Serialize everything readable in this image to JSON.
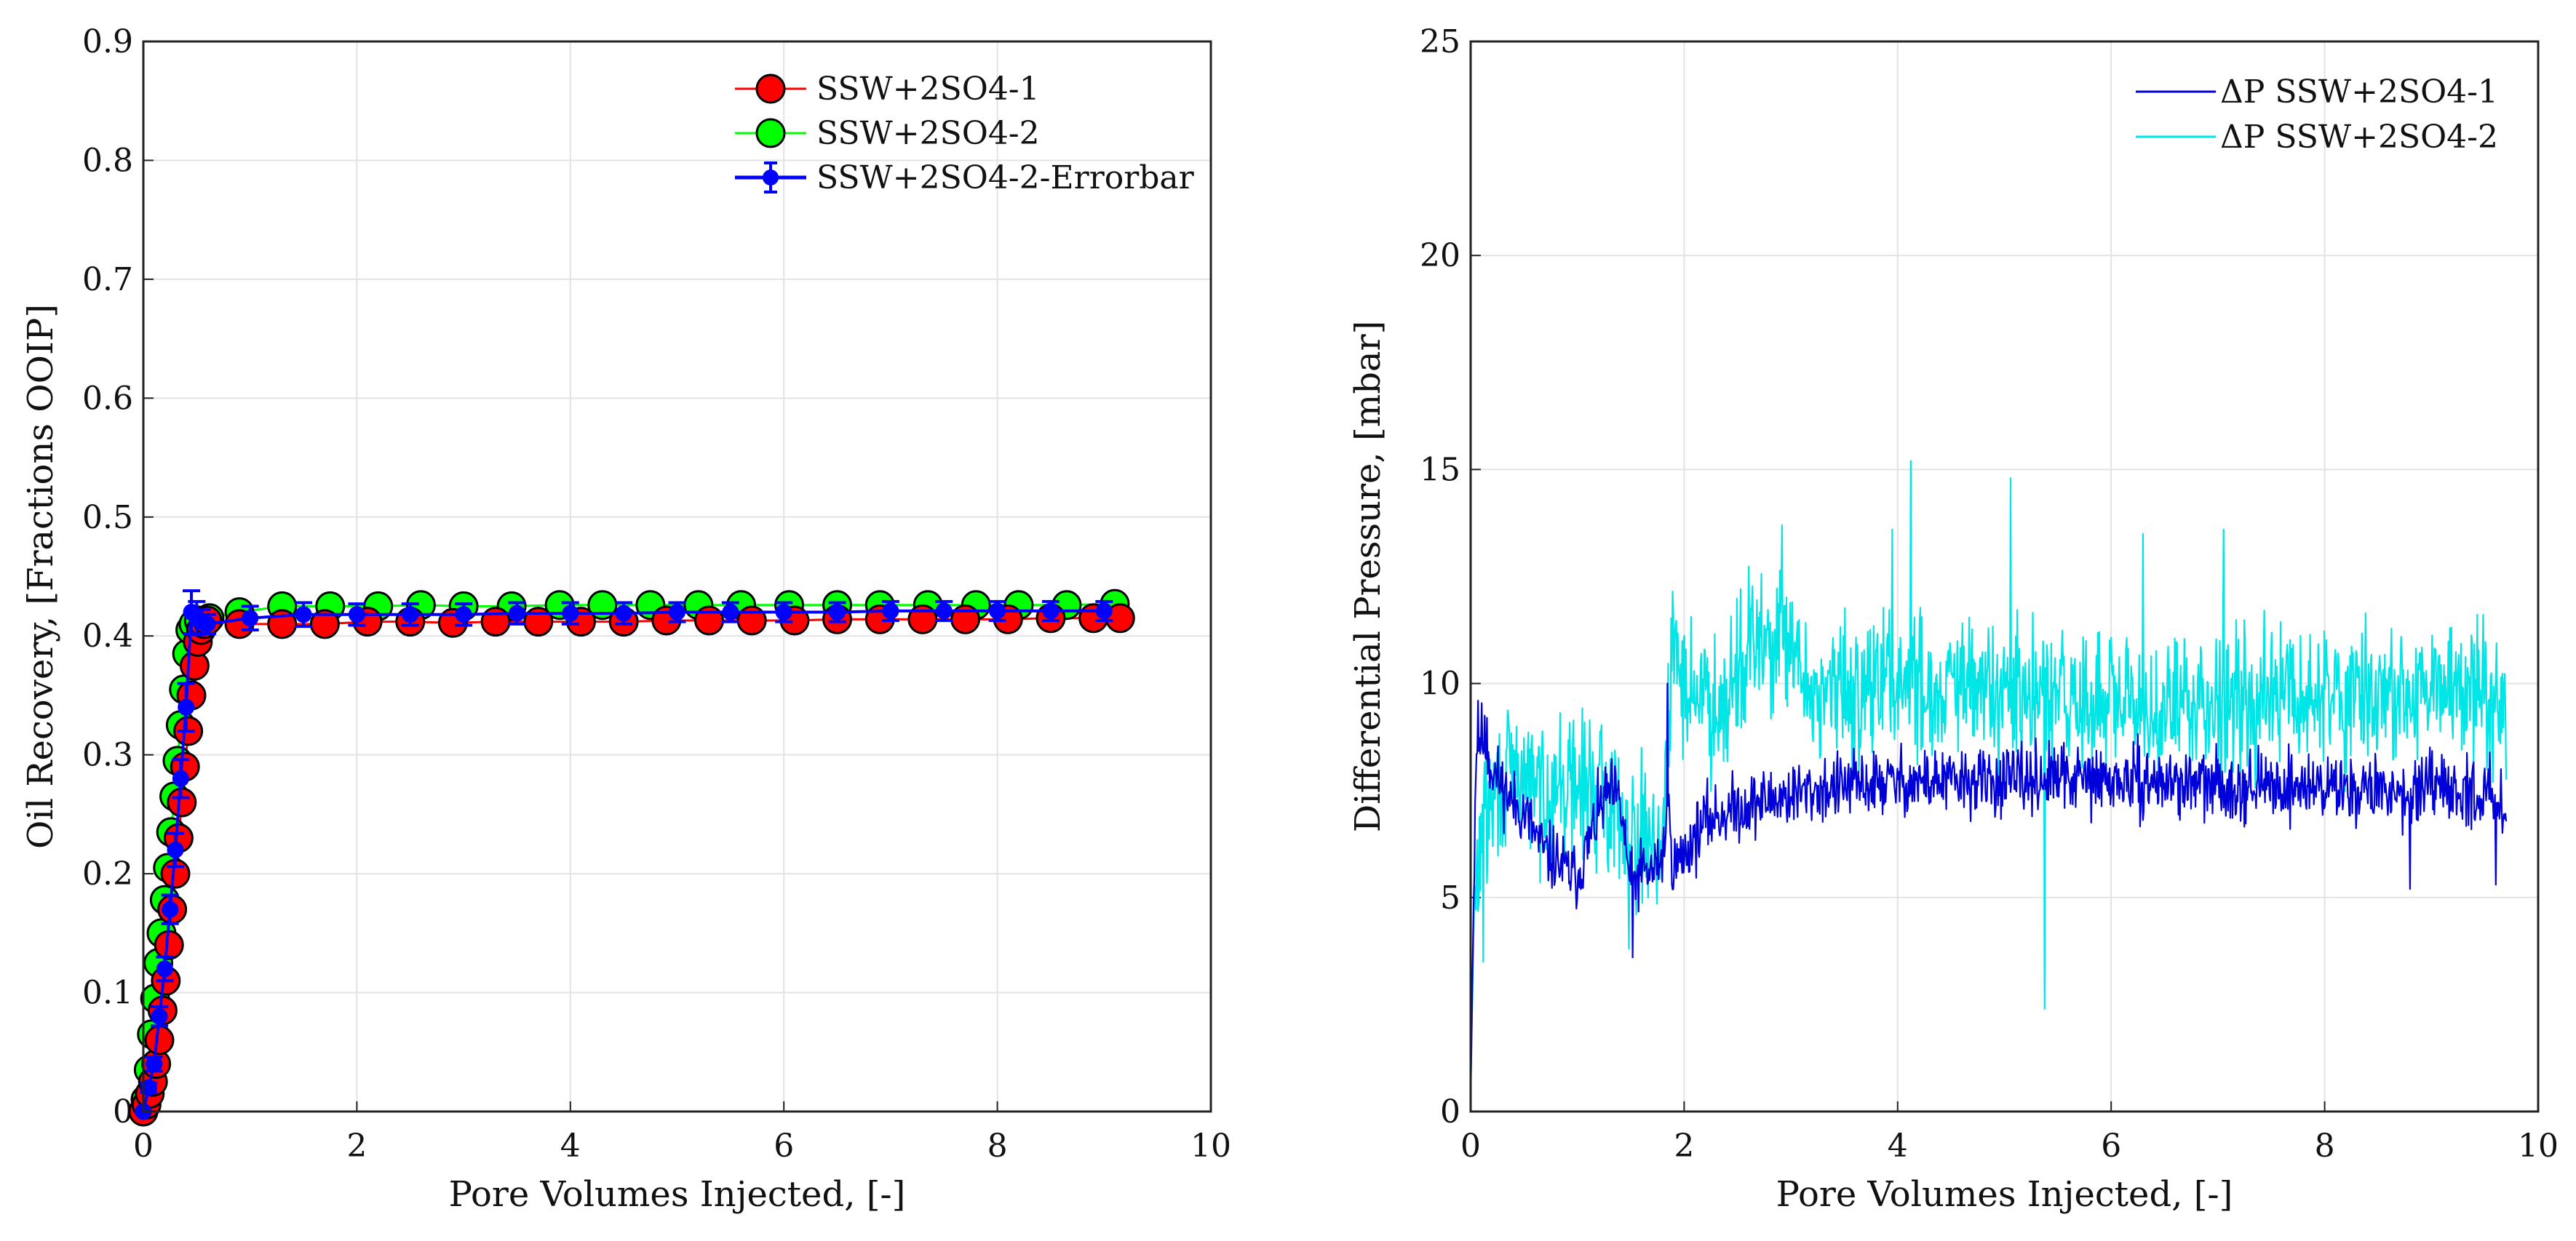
{
  "chart_data": [
    {
      "type": "scatter",
      "title": "",
      "xlabel": "Pore Volumes Injected, [-]",
      "ylabel": "Oil Recovery, [Fractions OOIP]",
      "xlim": [
        0,
        10
      ],
      "ylim": [
        0,
        0.9
      ],
      "xticks": [
        0,
        2,
        4,
        6,
        8,
        10
      ],
      "yticks": [
        0,
        0.1,
        0.2,
        0.3,
        0.4,
        0.5,
        0.6,
        0.7,
        0.8,
        0.9
      ],
      "xtick_labels": [
        "0",
        "2",
        "4",
        "6",
        "8",
        "10"
      ],
      "ytick_labels": [
        "0",
        "0.1",
        "0.2",
        "0.3",
        "0.4",
        "0.5",
        "0.6",
        "0.7",
        "0.8",
        "0.9"
      ],
      "grid": true,
      "legend_position": "top-right",
      "series": [
        {
          "name": "SSW+2SO4-1",
          "color": "#ff0000",
          "marker": "circle",
          "x": [
            0.0,
            0.03,
            0.06,
            0.09,
            0.12,
            0.15,
            0.18,
            0.21,
            0.24,
            0.27,
            0.3,
            0.33,
            0.36,
            0.39,
            0.42,
            0.45,
            0.48,
            0.51,
            0.54,
            0.57,
            0.6,
            0.9,
            1.3,
            1.7,
            2.1,
            2.5,
            2.9,
            3.3,
            3.7,
            4.1,
            4.5,
            4.9,
            5.3,
            5.7,
            6.1,
            6.5,
            6.9,
            7.3,
            7.7,
            8.1,
            8.5,
            8.9,
            9.15
          ],
          "y": [
            0.0,
            0.006,
            0.015,
            0.025,
            0.04,
            0.06,
            0.085,
            0.11,
            0.14,
            0.17,
            0.2,
            0.23,
            0.26,
            0.29,
            0.32,
            0.35,
            0.375,
            0.395,
            0.405,
            0.41,
            0.413,
            0.41,
            0.41,
            0.41,
            0.412,
            0.412,
            0.411,
            0.412,
            0.412,
            0.412,
            0.412,
            0.413,
            0.413,
            0.413,
            0.413,
            0.414,
            0.414,
            0.414,
            0.414,
            0.414,
            0.415,
            0.415,
            0.415
          ]
        },
        {
          "name": "SSW+2SO4-2",
          "color": "#00ff00",
          "marker": "circle",
          "x": [
            0.0,
            0.02,
            0.05,
            0.08,
            0.11,
            0.14,
            0.17,
            0.2,
            0.23,
            0.26,
            0.29,
            0.32,
            0.35,
            0.38,
            0.41,
            0.44,
            0.47,
            0.52,
            0.62,
            0.9,
            1.3,
            1.75,
            2.2,
            2.6,
            3.0,
            3.45,
            3.9,
            4.3,
            4.75,
            5.2,
            5.6,
            6.05,
            6.5,
            6.9,
            7.35,
            7.8,
            8.2,
            8.65,
            9.1
          ],
          "y": [
            0.0,
            0.01,
            0.035,
            0.065,
            0.095,
            0.125,
            0.15,
            0.178,
            0.205,
            0.235,
            0.265,
            0.295,
            0.325,
            0.355,
            0.385,
            0.405,
            0.41,
            0.413,
            0.415,
            0.42,
            0.425,
            0.425,
            0.425,
            0.426,
            0.425,
            0.425,
            0.426,
            0.426,
            0.426,
            0.426,
            0.426,
            0.426,
            0.426,
            0.426,
            0.426,
            0.426,
            0.426,
            0.426,
            0.427
          ]
        },
        {
          "name": "SSW+2SO4-2-Errorbar",
          "color": "#0000ff",
          "marker": "dot-errorbar",
          "x": [
            0.0,
            0.05,
            0.1,
            0.15,
            0.2,
            0.25,
            0.3,
            0.35,
            0.4,
            0.45,
            0.5,
            0.55,
            0.6,
            1.0,
            1.5,
            2.0,
            2.5,
            3.0,
            3.5,
            4.0,
            4.5,
            5.0,
            5.5,
            6.0,
            6.5,
            7.0,
            7.5,
            8.0,
            8.5,
            9.0
          ],
          "y": [
            0.0,
            0.02,
            0.04,
            0.08,
            0.12,
            0.17,
            0.22,
            0.28,
            0.34,
            0.42,
            0.415,
            0.412,
            0.41,
            0.415,
            0.418,
            0.418,
            0.418,
            0.418,
            0.419,
            0.419,
            0.419,
            0.42,
            0.42,
            0.42,
            0.42,
            0.421,
            0.421,
            0.421,
            0.421,
            0.421
          ],
          "err": [
            0.0,
            0.004,
            0.006,
            0.008,
            0.01,
            0.012,
            0.014,
            0.016,
            0.02,
            0.018,
            0.014,
            0.01,
            0.008,
            0.01,
            0.01,
            0.009,
            0.009,
            0.009,
            0.009,
            0.009,
            0.009,
            0.008,
            0.008,
            0.008,
            0.008,
            0.008,
            0.008,
            0.008,
            0.008,
            0.008
          ]
        }
      ]
    },
    {
      "type": "line",
      "title": "",
      "xlabel": "Pore Volumes Injected, [-]",
      "ylabel": "Differential Pressure, [mbar]",
      "xlim": [
        0,
        10
      ],
      "ylim": [
        0,
        25
      ],
      "xticks": [
        0,
        2,
        4,
        6,
        8,
        10
      ],
      "yticks": [
        0,
        5,
        10,
        15,
        20,
        25
      ],
      "xtick_labels": [
        "0",
        "2",
        "4",
        "6",
        "8",
        "10"
      ],
      "ytick_labels": [
        "0",
        "5",
        "10",
        "15",
        "20",
        "25"
      ],
      "grid": true,
      "legend_position": "top-right",
      "series": [
        {
          "name": "ΔP SSW+2SO4-1",
          "color": "#0000d8",
          "x_max": 9.7,
          "x": [
            0.0,
            0.05,
            0.1,
            0.2,
            0.3,
            0.4,
            0.5,
            0.6,
            0.7,
            0.8,
            0.9,
            1.0,
            1.1,
            1.2,
            1.3,
            1.4,
            1.5,
            1.6,
            1.7,
            1.8,
            1.85,
            1.9,
            2.0,
            2.2,
            2.5,
            3.0,
            3.5,
            4.0,
            4.5,
            5.0,
            5.5,
            6.0,
            6.5,
            7.0,
            7.5,
            8.0,
            8.5,
            9.0,
            9.5,
            9.7
          ],
          "y": [
            0.3,
            8.5,
            8.8,
            8.0,
            7.6,
            7.2,
            7.0,
            6.5,
            6.0,
            5.9,
            5.6,
            5.5,
            6.2,
            7.0,
            7.5,
            7.2,
            5.3,
            5.6,
            5.6,
            6.0,
            7.0,
            5.7,
            6.0,
            6.8,
            7.1,
            7.4,
            7.6,
            7.7,
            7.7,
            7.7,
            7.8,
            7.7,
            7.7,
            7.6,
            7.6,
            7.6,
            7.5,
            7.5,
            7.4,
            7.3
          ],
          "noise": 0.7,
          "seed": 11,
          "spikes": [
            [
              1.52,
              3.6
            ],
            [
              1.84,
              10.0
            ],
            [
              0.07,
              9.6
            ],
            [
              0.15,
              9.2
            ],
            [
              8.8,
              5.2
            ],
            [
              9.6,
              5.3
            ]
          ]
        },
        {
          "name": "ΔP SSW+2SO4-2",
          "color": "#00e5e5",
          "x_max": 9.7,
          "x": [
            0.0,
            0.03,
            0.1,
            0.2,
            0.3,
            0.4,
            0.5,
            0.6,
            0.8,
            1.0,
            1.2,
            1.4,
            1.6,
            1.8,
            1.9,
            2.0,
            2.3,
            2.6,
            2.9,
            3.2,
            3.6,
            4.0,
            4.4,
            4.8,
            5.2,
            5.6,
            6.0,
            6.4,
            6.8,
            7.2,
            7.6,
            8.0,
            8.4,
            8.8,
            9.2,
            9.6,
            9.7
          ],
          "y": [
            0.5,
            4.5,
            6.5,
            7.2,
            7.6,
            7.8,
            7.9,
            7.5,
            7.6,
            7.6,
            7.5,
            7.0,
            6.5,
            6.4,
            11.0,
            10.0,
            9.5,
            10.8,
            11.0,
            9.8,
            9.8,
            10.2,
            9.8,
            9.9,
            9.6,
            9.6,
            9.5,
            9.3,
            9.6,
            9.8,
            9.7,
            9.7,
            9.8,
            9.6,
            9.9,
            10.0,
            9.2
          ],
          "noise": 1.5,
          "seed": 29,
          "spikes": [
            [
              4.12,
              15.2
            ],
            [
              5.06,
              14.8
            ],
            [
              5.38,
              2.4
            ],
            [
              2.92,
              13.7
            ],
            [
              3.95,
              13.6
            ],
            [
              6.3,
              13.5
            ],
            [
              7.05,
              13.6
            ],
            [
              1.48,
              3.8
            ],
            [
              0.12,
              3.5
            ]
          ]
        }
      ]
    }
  ]
}
